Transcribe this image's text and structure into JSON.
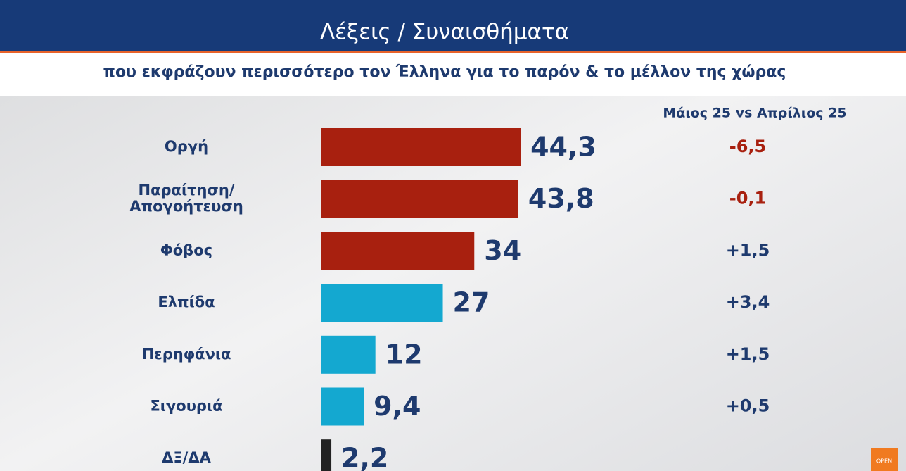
{
  "chart_data": {
    "type": "bar",
    "orientation": "horizontal",
    "title": "Λέξεις / Συναισθήματα",
    "subtitle": "που εκφράζουν περισσότερο τον Έλληνα για το παρόν & το μέλλον της χώρας",
    "categories": [
      "Οργή",
      "Παραίτηση/\nΑπογοήτευση",
      "Φόβος",
      "Ελπίδα",
      "Περηφάνια",
      "Σιγουριά",
      "ΔΞ/ΔΑ"
    ],
    "values": [
      44.3,
      43.8,
      34,
      27,
      12,
      9.4,
      2.2
    ],
    "value_labels": [
      "44,3",
      "43,8",
      "34",
      "27",
      "12",
      "9,4",
      "2,2"
    ],
    "colors": [
      "#a8200f",
      "#a8200f",
      "#a8200f",
      "#14a8d0",
      "#14a8d0",
      "#14a8d0",
      "#222222"
    ],
    "changes": {
      "header": "Μάιος 25 vs Απρίλιος 25",
      "values": [
        -6.5,
        -0.1,
        1.5,
        3.4,
        1.5,
        0.5,
        null
      ],
      "value_labels": [
        "-6,5",
        "-0,1",
        "+1,5",
        "+3,4",
        "+1,5",
        "+0,5",
        null
      ],
      "negative_color": "#a8200f",
      "positive_color": "#1e3a6e"
    },
    "logo": "OPEN"
  }
}
